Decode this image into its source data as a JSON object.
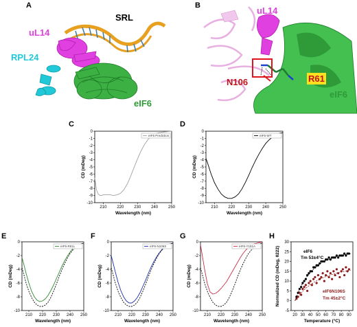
{
  "panels": {
    "A": {
      "label": "A",
      "srl": "SRL",
      "ul14": "uL14",
      "rpl24": "RPL24",
      "eif6": "eIF6"
    },
    "B": {
      "label": "B",
      "ul14": "uL14",
      "n106": "N106",
      "r61": "R61",
      "eif6": "eIF6"
    },
    "C": {
      "label": "C"
    },
    "D": {
      "label": "D"
    },
    "E": {
      "label": "E"
    },
    "F": {
      "label": "F"
    },
    "G": {
      "label": "G"
    },
    "H": {
      "label": "H"
    }
  },
  "colors": {
    "ul14": "#e040e0",
    "rpl24": "#20c8d8",
    "eif6": "#3cb043",
    "srl": "#e8a020",
    "r61": "#1a7a30",
    "n106": "#c0141c",
    "ul14_pale": "#e8b0e0"
  },
  "chart_data": [
    {
      "id": "C",
      "type": "line",
      "xlabel": "Wavelength (nm)",
      "ylabel": "CD (mDeg)",
      "xlim": [
        205,
        250
      ],
      "ylim": [
        -10,
        0
      ],
      "xticks": [
        210,
        220,
        230,
        240,
        250
      ],
      "yticks": [
        0,
        -1,
        -2,
        -3,
        -4,
        -5,
        -6,
        -7,
        -8,
        -9,
        -10
      ],
      "legend": "eIF6 Prediction",
      "series": [
        {
          "name": "eIF6 Prediction",
          "color": "#a0a0a0",
          "dash": "",
          "x": [
            205,
            206,
            207,
            208,
            209,
            210,
            212,
            214,
            216,
            218,
            220,
            222,
            224,
            226,
            228,
            230,
            232,
            234,
            236,
            238,
            240,
            242,
            244,
            246,
            248,
            250
          ],
          "values": [
            -6.5,
            -8.2,
            -8.8,
            -9.0,
            -9.0,
            -8.9,
            -8.9,
            -8.9,
            -9.0,
            -8.9,
            -8.7,
            -8.2,
            -7.4,
            -6.3,
            -5.1,
            -3.9,
            -2.8,
            -1.9,
            -1.2,
            -0.7,
            -0.4,
            -0.25,
            -0.15,
            -0.1,
            -0.05,
            0.0
          ]
        }
      ]
    },
    {
      "id": "D",
      "type": "line",
      "xlabel": "Wavelength (nm)",
      "ylabel": "CD (mDeg)",
      "xlim": [
        205,
        250
      ],
      "ylim": [
        -10,
        0
      ],
      "xticks": [
        210,
        220,
        230,
        240,
        250
      ],
      "yticks": [
        0,
        -1,
        -2,
        -3,
        -4,
        -5,
        -6,
        -7,
        -8,
        -9,
        -10
      ],
      "legend": "eIF6-WT",
      "series": [
        {
          "name": "eIF6-WT",
          "color": "#000000",
          "dash": "",
          "x": [
            205,
            206,
            208,
            210,
            212,
            214,
            216,
            218,
            220,
            222,
            224,
            226,
            228,
            230,
            232,
            234,
            236,
            238,
            240,
            242,
            244,
            246,
            248,
            250
          ],
          "values": [
            -3.8,
            -4.5,
            -6.0,
            -7.2,
            -8.1,
            -8.8,
            -9.2,
            -9.4,
            -9.4,
            -9.2,
            -8.8,
            -8.1,
            -7.2,
            -6.2,
            -5.1,
            -4.1,
            -3.2,
            -2.4,
            -1.7,
            -1.2,
            -0.8,
            -0.5,
            -0.3,
            -0.2
          ]
        }
      ]
    },
    {
      "id": "E",
      "type": "line",
      "xlabel": "Wavelength (nm)",
      "ylabel": "CD (mDeg)",
      "xlim": [
        205,
        250
      ],
      "ylim": [
        -10,
        0
      ],
      "xticks": [
        210,
        220,
        230,
        240,
        250
      ],
      "yticks": [
        0,
        -2,
        -4,
        -6,
        -8,
        -10
      ],
      "legend": "eIF6-R61L",
      "series": [
        {
          "name": "eIF6-R61L",
          "color": "#2e8b2e",
          "dash": "",
          "x": [
            205,
            206,
            208,
            210,
            212,
            214,
            216,
            218,
            220,
            222,
            224,
            226,
            228,
            230,
            232,
            234,
            236,
            238,
            240,
            242,
            244,
            246,
            248,
            250
          ],
          "values": [
            -2.3,
            -3.0,
            -4.6,
            -6.0,
            -7.2,
            -8.0,
            -8.5,
            -8.7,
            -8.6,
            -8.3,
            -7.8,
            -7.1,
            -6.3,
            -5.4,
            -4.5,
            -3.6,
            -2.8,
            -2.1,
            -1.5,
            -1.0,
            -0.7,
            -0.5,
            -0.3,
            -0.2
          ]
        },
        {
          "name": "",
          "color": "#000000",
          "dash": "2,1.5",
          "x": [
            205,
            206,
            208,
            210,
            212,
            214,
            216,
            218,
            220,
            222,
            224,
            226,
            228,
            230,
            232,
            234,
            236,
            238,
            240,
            242,
            244,
            246,
            248,
            250
          ],
          "values": [
            -3.8,
            -4.5,
            -6.0,
            -7.2,
            -8.1,
            -8.8,
            -9.2,
            -9.4,
            -9.4,
            -9.2,
            -8.8,
            -8.1,
            -7.2,
            -6.2,
            -5.1,
            -4.1,
            -3.2,
            -2.4,
            -1.7,
            -1.2,
            -0.8,
            -0.5,
            -0.3,
            -0.2
          ]
        }
      ]
    },
    {
      "id": "F",
      "type": "line",
      "xlabel": "Wavelength (nm)",
      "ylabel": "CD (mDeg)",
      "xlim": [
        205,
        250
      ],
      "ylim": [
        -10,
        0
      ],
      "xticks": [
        210,
        220,
        230,
        240,
        250
      ],
      "yticks": [
        0,
        -2,
        -4,
        -6,
        -8,
        -10
      ],
      "legend": "eIF6-N106S",
      "series": [
        {
          "name": "eIF6-N106S",
          "color": "#1c2fa8",
          "dash": "",
          "x": [
            205,
            206,
            208,
            210,
            212,
            214,
            216,
            218,
            220,
            222,
            224,
            226,
            228,
            230,
            232,
            234,
            236,
            238,
            240,
            242,
            244,
            246,
            248,
            250
          ],
          "values": [
            -2.0,
            -2.8,
            -4.4,
            -5.9,
            -7.1,
            -8.0,
            -8.6,
            -8.9,
            -8.9,
            -8.6,
            -8.1,
            -7.4,
            -6.5,
            -5.6,
            -4.6,
            -3.7,
            -2.9,
            -2.2,
            -1.6,
            -1.1,
            -0.7,
            -0.5,
            -0.3,
            -0.2
          ]
        },
        {
          "name": "",
          "color": "#000000",
          "dash": "2,1.5",
          "x": [
            205,
            206,
            208,
            210,
            212,
            214,
            216,
            218,
            220,
            222,
            224,
            226,
            228,
            230,
            232,
            234,
            236,
            238,
            240,
            242,
            244,
            246,
            248,
            250
          ],
          "values": [
            -3.8,
            -4.5,
            -6.0,
            -7.2,
            -8.1,
            -8.8,
            -9.2,
            -9.4,
            -9.4,
            -9.2,
            -8.8,
            -8.1,
            -7.2,
            -6.2,
            -5.1,
            -4.1,
            -3.2,
            -2.4,
            -1.7,
            -1.2,
            -0.8,
            -0.5,
            -0.3,
            -0.2
          ]
        }
      ]
    },
    {
      "id": "G",
      "type": "line",
      "xlabel": "Wavelength (nm)",
      "ylabel": "CD (mDeg)",
      "xlim": [
        205,
        250
      ],
      "ylim": [
        -10,
        0
      ],
      "xticks": [
        210,
        220,
        230,
        240,
        250
      ],
      "yticks": [
        0,
        -2,
        -4,
        -6,
        -8,
        -10
      ],
      "legend": "eIF6-Y151A",
      "series": [
        {
          "name": "eIF6-Y151A",
          "color": "#c8304a",
          "dash": "",
          "x": [
            205,
            206,
            208,
            210,
            212,
            214,
            216,
            218,
            220,
            222,
            224,
            226,
            228,
            230,
            232,
            234,
            236,
            238,
            240,
            242,
            244,
            246,
            248,
            250
          ],
          "values": [
            -0.4,
            -1.6,
            -4.0,
            -6.1,
            -7.3,
            -7.6,
            -7.5,
            -7.2,
            -6.8,
            -6.3,
            -5.8,
            -5.1,
            -4.4,
            -3.7,
            -3.0,
            -2.3,
            -1.7,
            -1.2,
            -0.8,
            -0.5,
            -0.3,
            -0.2,
            -0.1,
            -0.05
          ]
        },
        {
          "name": "",
          "color": "#000000",
          "dash": "2,1.5",
          "x": [
            205,
            206,
            208,
            210,
            212,
            214,
            216,
            218,
            220,
            222,
            224,
            226,
            228,
            230,
            232,
            234,
            236,
            238,
            240,
            242,
            244,
            246,
            248,
            250
          ],
          "values": [
            -3.8,
            -4.5,
            -6.0,
            -7.2,
            -8.1,
            -8.8,
            -9.2,
            -9.4,
            -9.4,
            -9.2,
            -8.8,
            -8.1,
            -7.2,
            -6.2,
            -5.1,
            -4.1,
            -3.2,
            -2.4,
            -1.7,
            -1.2,
            -0.8,
            -0.5,
            -0.3,
            -0.2
          ]
        }
      ]
    },
    {
      "id": "H",
      "type": "scatter",
      "xlabel": "Temperature (°C)",
      "ylabel": "Normalized CD (mDeg, θ222)",
      "xlim": [
        15,
        95
      ],
      "ylim": [
        -5,
        30
      ],
      "xticks": [
        20,
        30,
        40,
        50,
        60,
        70,
        80,
        90
      ],
      "yticks": [
        -5,
        0,
        5,
        10,
        15,
        20,
        25,
        30
      ],
      "annotations": {
        "wt_name": "eIF6",
        "wt_tm": "Tm 53±4°C",
        "mut_name": "eIF6N106S",
        "mut_tm": "Tm 45±2°C"
      },
      "series": [
        {
          "name": "eIF6",
          "color": "#000000",
          "x": [
            22,
            24,
            26,
            28,
            30,
            32,
            34,
            36,
            38,
            40,
            42,
            44,
            46,
            48,
            50,
            52,
            54,
            56,
            58,
            60,
            62,
            64,
            66,
            68,
            70,
            72,
            74,
            76,
            78,
            80,
            82,
            84,
            86,
            88,
            90
          ],
          "values": [
            2,
            4,
            6,
            7,
            9,
            10,
            11,
            13,
            14,
            15,
            15,
            17,
            17,
            18,
            18,
            19,
            20,
            20,
            20,
            21,
            21,
            22,
            21,
            22,
            22,
            22,
            23,
            22,
            23,
            23,
            23,
            24,
            23,
            24,
            24
          ]
        },
        {
          "name": "eIF6N106S",
          "color": "#8b1a1a",
          "x": [
            22,
            24,
            26,
            28,
            30,
            32,
            34,
            36,
            38,
            40,
            42,
            44,
            46,
            48,
            50,
            52,
            54,
            56,
            58,
            60,
            62,
            64,
            66,
            68,
            70,
            72,
            74,
            76,
            78,
            80,
            82,
            84,
            86,
            88,
            90
          ],
          "values": [
            1,
            2,
            4,
            3,
            6,
            7,
            8,
            5,
            9,
            10,
            8,
            11,
            12,
            9,
            13,
            11,
            12,
            14,
            10,
            13,
            15,
            12,
            14,
            11,
            15,
            13,
            16,
            14,
            12,
            15,
            16,
            13,
            17,
            15,
            16
          ]
        }
      ],
      "fits": [
        {
          "name": "eIF6 fit",
          "color": "#000000",
          "dash": "2,1.5",
          "x": [
            20,
            25,
            30,
            35,
            40,
            45,
            50,
            55,
            60,
            65,
            70,
            75,
            80,
            85,
            90,
            92
          ],
          "values": [
            0,
            5,
            9,
            12,
            14.5,
            16.5,
            18,
            19.5,
            20.5,
            21.3,
            22,
            22.6,
            23.1,
            23.5,
            23.8,
            24
          ]
        },
        {
          "name": "eIF6N106S fit",
          "color": "#8b1a1a",
          "dash": "2,1.5",
          "x": [
            20,
            25,
            30,
            35,
            40,
            45,
            50,
            55,
            60,
            65,
            70,
            75,
            80,
            85,
            90,
            92
          ],
          "values": [
            0,
            2.5,
            4.8,
            6.7,
            8.2,
            9.5,
            10.6,
            11.5,
            12.3,
            13,
            13.6,
            14.1,
            14.6,
            15,
            15.4,
            15.5
          ]
        }
      ]
    }
  ]
}
